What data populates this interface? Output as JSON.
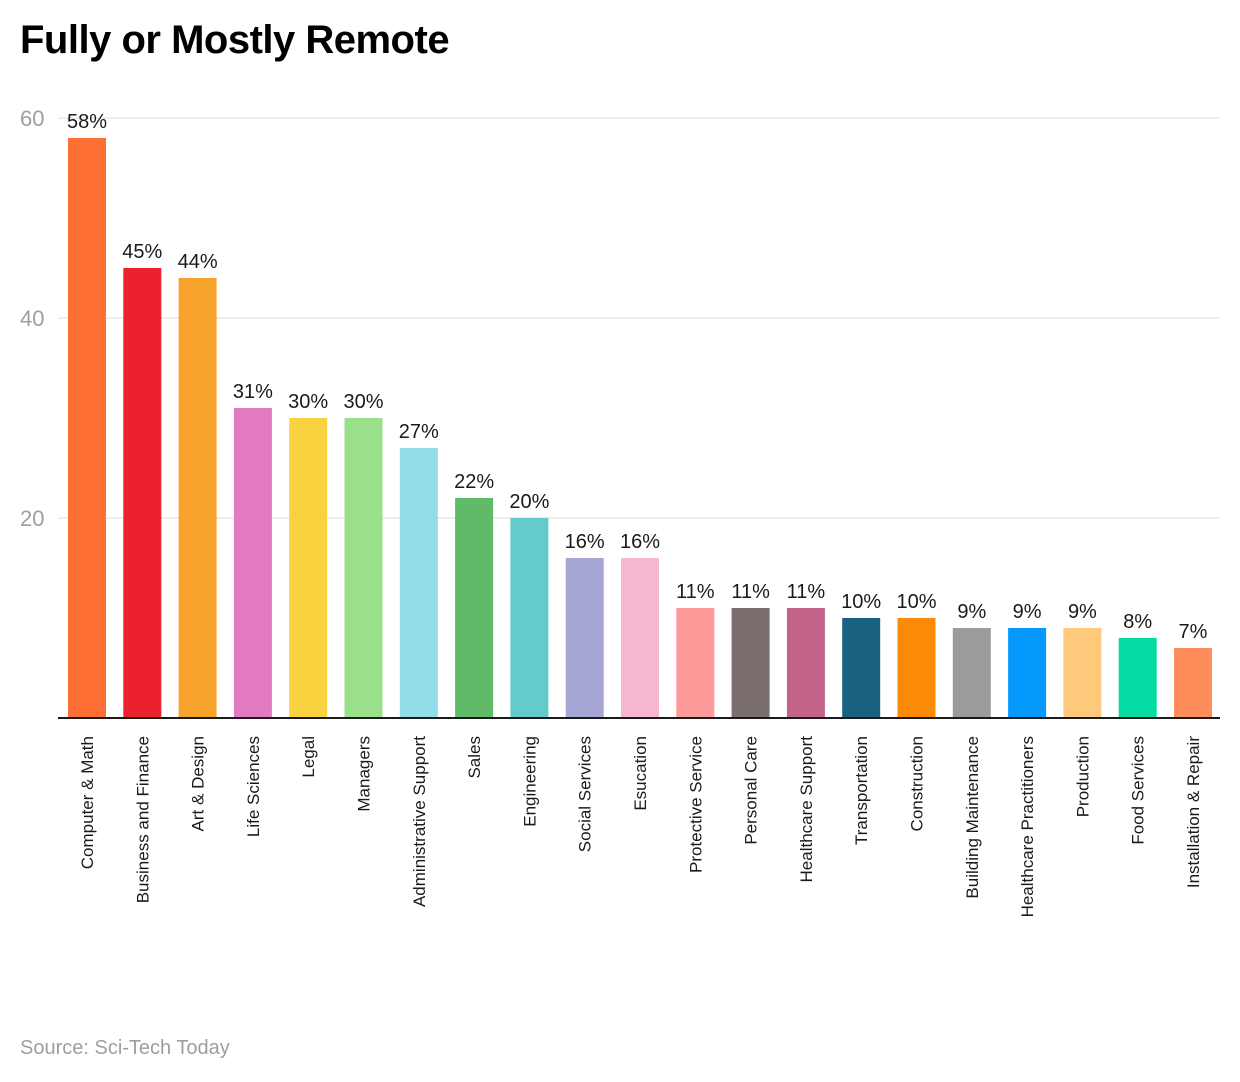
{
  "title": "Fully or Mostly Remote",
  "source": "Source: Sci-Tech Today",
  "chart_data": {
    "type": "bar",
    "title": "Fully or Mostly Remote",
    "xlabel": "",
    "ylabel": "",
    "ylim": [
      0,
      60
    ],
    "yticks": [
      20,
      40,
      60
    ],
    "grid": true,
    "value_suffix": "%",
    "categories": [
      "Computer & Math",
      "Business and Finance",
      "Art & Design",
      "Life Sciences",
      "Legal",
      "Managers",
      "Administrative Support",
      "Sales",
      "Engineering",
      "Social Services",
      "Esucation",
      "Protective Service",
      "Personal Care",
      "Healthcare Support",
      "Transportation",
      "Construction",
      "Building Maintenance",
      "Healthcare Practitioners",
      "Production",
      "Food Services",
      "Installation & Repair"
    ],
    "values": [
      58,
      45,
      44,
      31,
      30,
      30,
      27,
      22,
      20,
      16,
      16,
      11,
      11,
      11,
      10,
      10,
      9,
      9,
      9,
      8,
      7
    ],
    "colors": [
      "#fe6f35",
      "#ec2130",
      "#f8a42c",
      "#e379c1",
      "#f9d23f",
      "#9ae08a",
      "#93dcea",
      "#5fbb69",
      "#65cbca",
      "#a6a6d4",
      "#f7b7d3",
      "#fe9a9a",
      "#7a6e6e",
      "#c4638a",
      "#18617f",
      "#fb8b07",
      "#9b9b9b",
      "#0598fd",
      "#fec97a",
      "#05dca4",
      "#fe8d5b"
    ]
  }
}
